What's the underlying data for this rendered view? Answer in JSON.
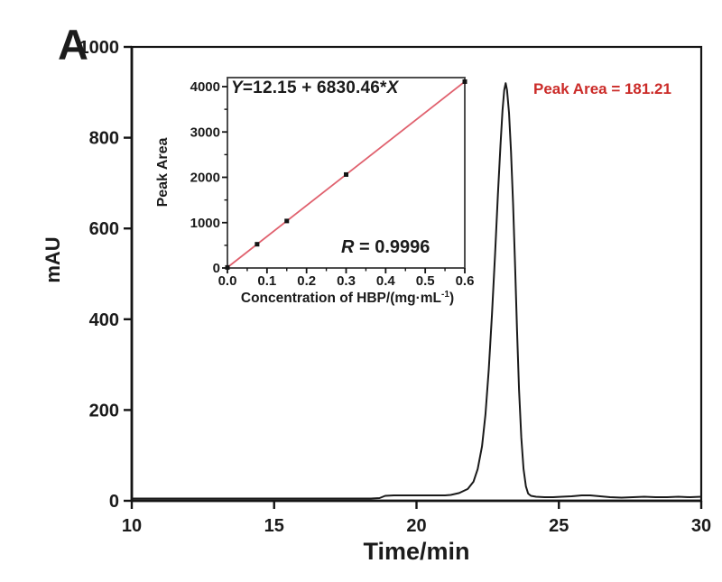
{
  "panel_label": "A",
  "colors": {
    "trace": "#1a1a1a",
    "axis": "#141414",
    "inset_frame": "#3a3a3a",
    "fit_line": "#e0616e",
    "marker": "#141414",
    "annotation_red": "#cb2b28"
  },
  "annotation": {
    "peak_area_label": "Peak Area = 181.21"
  },
  "chart_data": [
    {
      "id": "chromatogram",
      "type": "line",
      "xlabel": "Time/min",
      "ylabel": "mAU",
      "xlim": [
        10,
        30
      ],
      "ylim": [
        0,
        1000
      ],
      "grid": false,
      "x_ticks": {
        "values": [
          10,
          15,
          20,
          25,
          30
        ],
        "labels": [
          "10",
          "15",
          "20",
          "25",
          "30"
        ]
      },
      "y_ticks": {
        "values": [
          0,
          200,
          400,
          600,
          800,
          1000
        ],
        "labels": [
          "0",
          "200",
          "400",
          "600",
          "800",
          "1000"
        ]
      },
      "peak": {
        "retention_time_min": 23.1,
        "height_mAU": 920,
        "area": 181.21
      },
      "series": [
        {
          "name": "UV trace",
          "points": [
            [
              10,
              5
            ],
            [
              11,
              5
            ],
            [
              12,
              5
            ],
            [
              13,
              5
            ],
            [
              14,
              5
            ],
            [
              15,
              5
            ],
            [
              16,
              5
            ],
            [
              17,
              5
            ],
            [
              18,
              5
            ],
            [
              18.4,
              5
            ],
            [
              18.7,
              6
            ],
            [
              18.9,
              11
            ],
            [
              19.2,
              12
            ],
            [
              19.6,
              12
            ],
            [
              20.0,
              12
            ],
            [
              20.4,
              12
            ],
            [
              20.8,
              12
            ],
            [
              21.0,
              12
            ],
            [
              21.2,
              13
            ],
            [
              21.5,
              17
            ],
            [
              21.8,
              26
            ],
            [
              22.0,
              42
            ],
            [
              22.15,
              70
            ],
            [
              22.3,
              120
            ],
            [
              22.42,
              190
            ],
            [
              22.54,
              290
            ],
            [
              22.65,
              410
            ],
            [
              22.76,
              545
            ],
            [
              22.86,
              675
            ],
            [
              22.95,
              785
            ],
            [
              23.02,
              860
            ],
            [
              23.08,
              905
            ],
            [
              23.13,
              920
            ],
            [
              23.18,
              905
            ],
            [
              23.25,
              855
            ],
            [
              23.32,
              770
            ],
            [
              23.39,
              655
            ],
            [
              23.46,
              520
            ],
            [
              23.53,
              375
            ],
            [
              23.6,
              245
            ],
            [
              23.68,
              140
            ],
            [
              23.76,
              70
            ],
            [
              23.84,
              32
            ],
            [
              23.92,
              16
            ],
            [
              24.02,
              11
            ],
            [
              24.2,
              9
            ],
            [
              24.5,
              8
            ],
            [
              24.8,
              8
            ],
            [
              25.1,
              9
            ],
            [
              25.45,
              10
            ],
            [
              25.8,
              12
            ],
            [
              26.1,
              12
            ],
            [
              26.45,
              10
            ],
            [
              26.8,
              8
            ],
            [
              27.2,
              7
            ],
            [
              27.6,
              8
            ],
            [
              28.0,
              9
            ],
            [
              28.4,
              8
            ],
            [
              28.8,
              8
            ],
            [
              29.2,
              9
            ],
            [
              29.6,
              8
            ],
            [
              30,
              9
            ]
          ]
        }
      ]
    },
    {
      "id": "calibration-inset",
      "type": "scatter",
      "ylabel": "Peak Area",
      "xlabel_parts": {
        "prefix": "Concentration of HBP/(mg·mL",
        "sup": "-1",
        "suffix": ")"
      },
      "xlim": [
        0,
        0.6
      ],
      "ylim": [
        0,
        4200
      ],
      "grid": false,
      "x_ticks": {
        "values": [
          0,
          0.1,
          0.2,
          0.3,
          0.4,
          0.5,
          0.6
        ],
        "labels": [
          "0.0",
          "0.1",
          "0.2",
          "0.3",
          "0.4",
          "0.5",
          "0.6"
        ],
        "minor_step": 0.05
      },
      "y_ticks": {
        "values": [
          0,
          1000,
          2000,
          3000,
          4000
        ],
        "labels": [
          "0",
          "1000",
          "2000",
          "3000",
          "4000"
        ],
        "minor_step": 500
      },
      "points": [
        [
          0,
          12
        ],
        [
          0.075,
          524
        ],
        [
          0.15,
          1037
        ],
        [
          0.3,
          2061
        ],
        [
          0.6,
          4110
        ]
      ],
      "fit": {
        "slope": 6830.46,
        "intercept": 12.15,
        "r": 0.9996,
        "equation_parts": {
          "y_var": "Y",
          "mid": "=12.15 + 6830.46*",
          "x_var": "X"
        },
        "r_parts": {
          "r_var": "R",
          "rest": " = 0.9996"
        }
      }
    }
  ]
}
